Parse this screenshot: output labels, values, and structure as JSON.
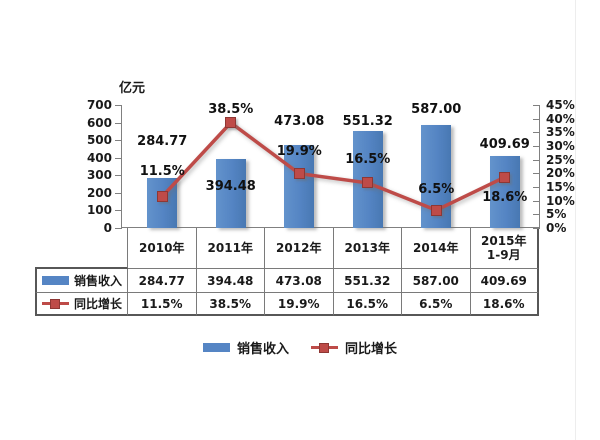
{
  "chart_data": {
    "type": "combo-bar-line",
    "title": "",
    "categories": [
      "2010年",
      "2011年",
      "2012年",
      "2013年",
      "2014年",
      "2015年1-9月"
    ],
    "series": [
      {
        "name": "销售收入",
        "type": "bar",
        "axis": "left",
        "unit": "亿元",
        "values": [
          284.77,
          394.48,
          473.08,
          551.32,
          587.0,
          409.69
        ],
        "labels": [
          "284.77",
          "394.48",
          "473.08",
          "551.32",
          "587.00",
          "409.69"
        ],
        "color": "#5585c4"
      },
      {
        "name": "同比增长",
        "type": "line",
        "axis": "right",
        "unit": "%",
        "marker": "square",
        "values": [
          11.5,
          38.5,
          19.9,
          16.5,
          6.5,
          18.6
        ],
        "labels": [
          "11.5%",
          "38.5%",
          "19.9%",
          "16.5%",
          "6.5%",
          "18.6%"
        ],
        "color": "#be4b48"
      }
    ],
    "left_axis": {
      "title": "亿元",
      "min": 0,
      "max": 700,
      "step": 100
    },
    "right_axis": {
      "min": 0,
      "max": 45,
      "step": 5,
      "suffix": "%"
    },
    "grid": false,
    "legend_position": "bottom",
    "data_table_shown": true
  },
  "table": {
    "columns": [
      {
        "line1": "2010年",
        "line2": ""
      },
      {
        "line1": "2011年",
        "line2": ""
      },
      {
        "line1": "2012年",
        "line2": ""
      },
      {
        "line1": "2013年",
        "line2": ""
      },
      {
        "line1": "2014年",
        "line2": ""
      },
      {
        "line1": "2015年",
        "line2": "1-9月"
      }
    ],
    "rows": [
      {
        "name": "销售收入",
        "values": [
          "284.77",
          "394.48",
          "473.08",
          "551.32",
          "587.00",
          "409.69"
        ]
      },
      {
        "name": "同比增长",
        "values": [
          "11.5%",
          "38.5%",
          "19.9%",
          "16.5%",
          "6.5%",
          "18.6%"
        ]
      }
    ]
  },
  "legend": {
    "items": [
      {
        "label": "销售收入",
        "swatch": "bar",
        "color": "#5585c4"
      },
      {
        "label": "同比增长",
        "swatch": "line-marker",
        "color": "#be4b48"
      }
    ]
  },
  "colors": {
    "bar": "#5585c4",
    "line": "#be4b48",
    "marker_border": "#8e3734",
    "axis": "#808080",
    "table_border": "#575757",
    "text": "#1a1a1a"
  }
}
